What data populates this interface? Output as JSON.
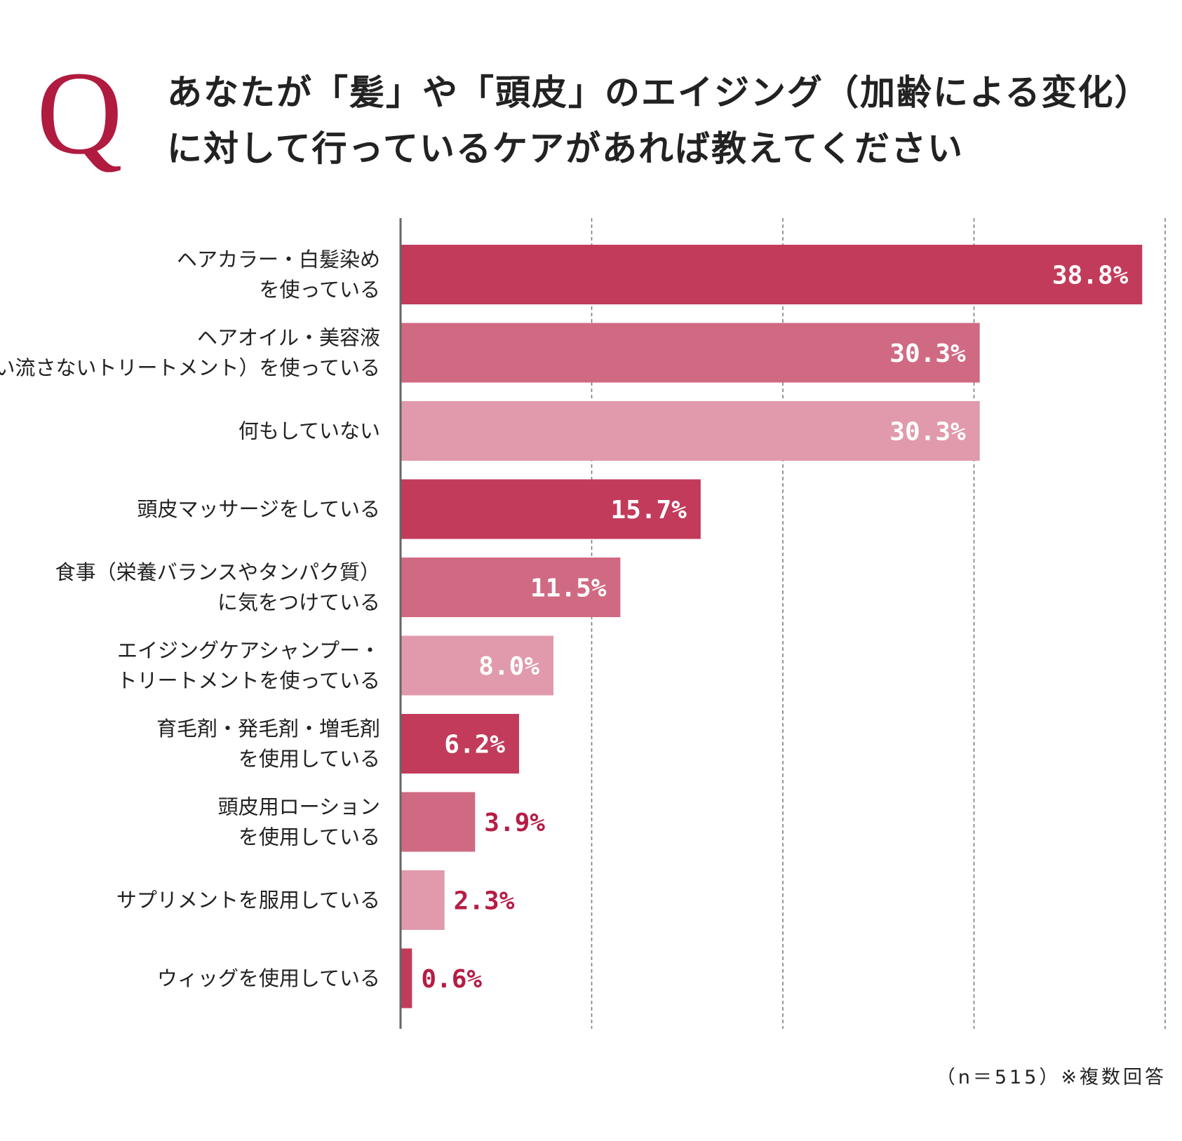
{
  "question_mark": "Q",
  "title_lines": [
    "あなたが「髪」や「頭皮」のエイジング（加齢による変化）",
    "に対して行っているケアがあれば教えてください"
  ],
  "footnote": "（n＝515）※複数回答",
  "colors": {
    "dark": "#c23b5b",
    "mid": "#d06a83",
    "light": "#e09aab",
    "outside_label": "#b51d45",
    "accent": "#b01b3f"
  },
  "chart_data": {
    "type": "bar",
    "orientation": "horizontal",
    "unit": "%",
    "xlim": [
      0,
      40
    ],
    "grid": "dashed vertical",
    "categories": [
      [
        "ヘアカラー・白髪染め",
        "を使っている"
      ],
      [
        "ヘアオイル・美容液",
        "（洗い流さないトリートメント）を使っている"
      ],
      [
        "何もしていない"
      ],
      [
        "頭皮マッサージをしている"
      ],
      [
        "食事（栄養バランスやタンパク質）",
        "に気をつけている"
      ],
      [
        "エイジングケアシャンプー・",
        "トリートメントを使っている"
      ],
      [
        "育毛剤・発毛剤・増毛剤",
        "を使用している"
      ],
      [
        "頭皮用ローション",
        "を使用している"
      ],
      [
        "サプリメントを服用している"
      ],
      [
        "ウィッグを使用している"
      ]
    ],
    "values": [
      38.8,
      30.3,
      30.3,
      15.7,
      11.5,
      8.0,
      6.2,
      3.9,
      2.3,
      0.6
    ],
    "value_labels": [
      "38.8%",
      "30.3%",
      "30.3%",
      "15.7%",
      "11.5%",
      "8.0%",
      "6.2%",
      "3.9%",
      "2.3%",
      "0.6%"
    ],
    "bar_shades": [
      "dark",
      "mid",
      "light",
      "dark",
      "mid",
      "light",
      "dark",
      "mid",
      "light",
      "dark"
    ]
  }
}
